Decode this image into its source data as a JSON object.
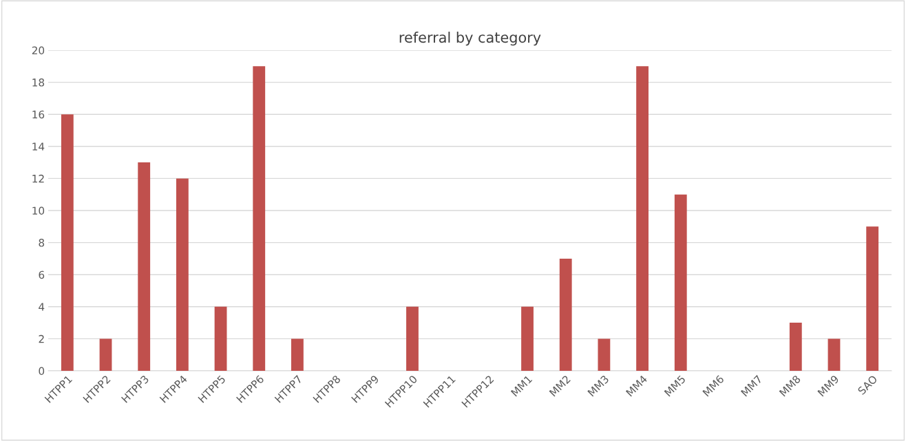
{
  "chart_data": {
    "type": "bar",
    "title": "referral by category",
    "categories": [
      "HTPP1",
      "HTPP2",
      "HTPP3",
      "HTPP4",
      "HTPP5",
      "HTPP6",
      "HTPP7",
      "HTPP8",
      "HTPP9",
      "HTPP10",
      "HTPP11",
      "HTPP12",
      "MM1",
      "MM2",
      "MM3",
      "MM4",
      "MM5",
      "MM6",
      "MM7",
      "MM8",
      "MM9",
      "SAO"
    ],
    "values": [
      16,
      2,
      13,
      12,
      4,
      19,
      2,
      0,
      0,
      4,
      0,
      0,
      4,
      7,
      2,
      19,
      11,
      0,
      0,
      3,
      2,
      9
    ],
    "color": "#c0504d",
    "ylim": [
      0,
      20
    ],
    "yticks": [
      0,
      2,
      4,
      6,
      8,
      10,
      12,
      14,
      16,
      18,
      20
    ],
    "grid": "y",
    "legend": false
  }
}
